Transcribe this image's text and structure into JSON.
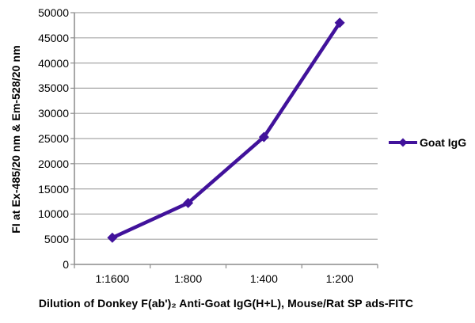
{
  "chart_data": {
    "type": "line",
    "categories": [
      "1:1600",
      "1:800",
      "1:400",
      "1:200"
    ],
    "series": [
      {
        "name": "Goat IgG",
        "values": [
          5300,
          12200,
          25300,
          48000
        ]
      }
    ],
    "title": "",
    "xlabel": "Dilution of Donkey F(ab')₂ Anti-Goat IgG(H+L), Mouse/Rat SP ads-FITC",
    "ylabel": "FI at Ex-485/20 nm & Em-528/20 nm",
    "ylim": [
      0,
      50000
    ],
    "ytick_step": 5000,
    "ytick_labels": [
      "0",
      "5000",
      "10000",
      "15000",
      "20000",
      "25000",
      "30000",
      "35000",
      "40000",
      "45000",
      "50000"
    ],
    "grid": true,
    "legend_position": "right",
    "marker": "diamond",
    "colors": {
      "line": "#41129B",
      "grid": "#A6A6A6",
      "axis": "#8C8C8C",
      "text": "#000000",
      "background": "#FFFFFF"
    }
  }
}
